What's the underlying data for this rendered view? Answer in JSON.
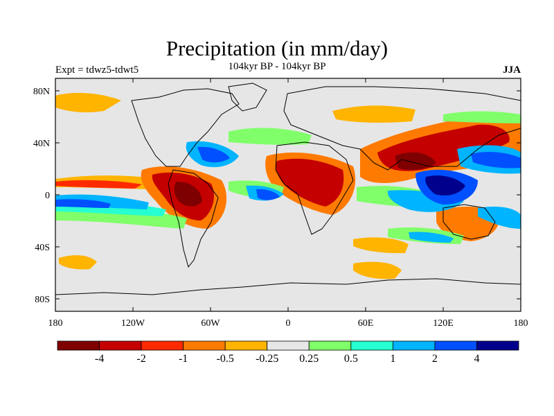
{
  "figure": {
    "title": "Precipitation (in mm/day)",
    "experiment": "Expt = tdwz5-tdwt5",
    "period": "104kyr BP - 104kyr BP",
    "season": "JJA"
  },
  "axes": {
    "lat_labels": [
      "80N",
      "40N",
      "0",
      "40S",
      "80S"
    ],
    "lon_labels": [
      "180",
      "120W",
      "60W",
      "0",
      "60E",
      "120E",
      "180"
    ]
  },
  "colorbar": {
    "colors": [
      "#7f0000",
      "#c40000",
      "#ff2a00",
      "#ff7a00",
      "#ffb400",
      "#e6e6e6",
      "#80ff6a",
      "#26ffd2",
      "#00b4ff",
      "#0050ff",
      "#00008c"
    ],
    "labels": [
      "-4",
      "-2",
      "-1",
      "-0.5",
      "-0.25",
      "0.25",
      "0.5",
      "1",
      "2",
      "4"
    ]
  },
  "colors": {
    "ocean_neutral": "#e6e6e6",
    "coastline": "#000000"
  }
}
